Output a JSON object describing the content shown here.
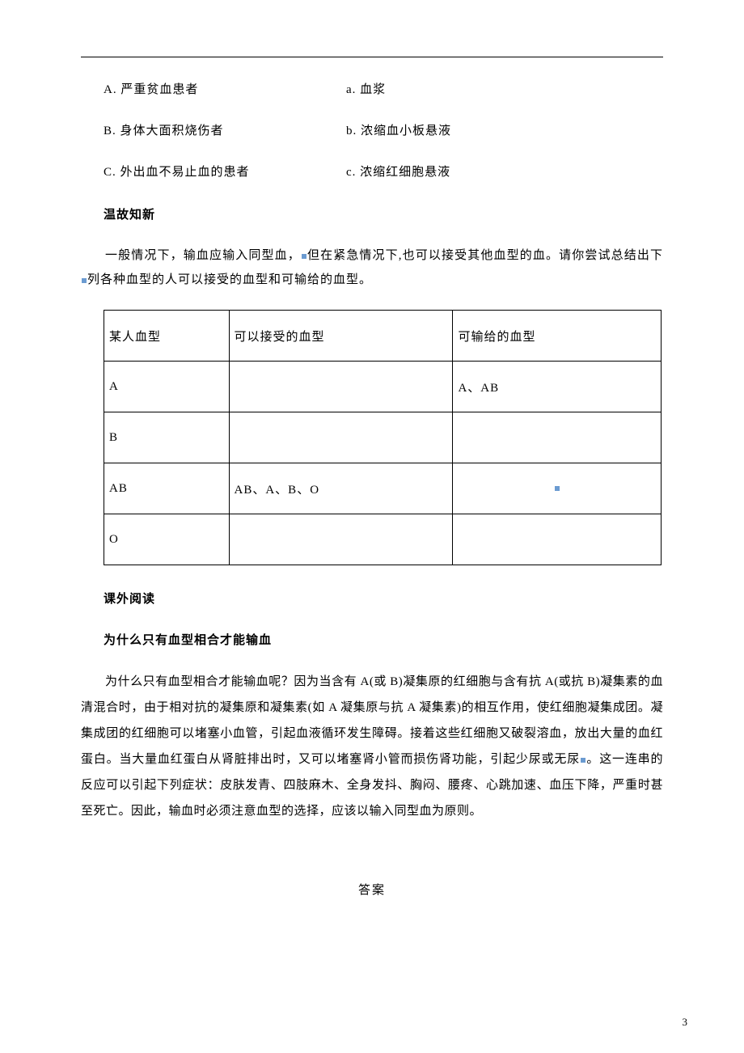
{
  "matches": [
    {
      "left": "A. 严重贫血患者",
      "right": "a. 血浆"
    },
    {
      "left": "B. 身体大面积烧伤者",
      "right": "b. 浓缩血小板悬液"
    },
    {
      "left": "C. 外出血不易止血的患者",
      "right": "c. 浓缩红细胞悬液"
    }
  ],
  "section1_title": "温故知新",
  "section1_para": "一般情况下，输血应输入同型血，但在紧急情况下,也可以接受其他血型的血。请你尝试总结出下列各种血型的人可以接受的血型和可输给的血型。",
  "table": {
    "headers": [
      "某人血型",
      "可以接受的血型",
      "可输给的血型"
    ],
    "rows": [
      {
        "c1": "A",
        "c2": "",
        "c3": "A、AB"
      },
      {
        "c1": "B",
        "c2": "",
        "c3": ""
      },
      {
        "c1": "AB",
        "c2": "AB、A、B、O",
        "c3": ""
      },
      {
        "c1": "O",
        "c2": "",
        "c3": ""
      }
    ]
  },
  "section2_title": "课外阅读",
  "section2_sub": "为什么只有血型相合才能输血",
  "section2_para": "为什么只有血型相合才能输血呢？因为当含有 A(或 B)凝集原的红细胞与含有抗 A(或抗 B)凝集素的血清混合时，由于相对抗的凝集原和凝集素(如 A 凝集原与抗 A 凝集素)的相互作用，使红细胞凝集成团。凝集成团的红细胞可以堵塞小血管，引起血液循环发生障碍。接着这些红细胞又破裂溶血，放出大量的血红蛋白。当大量血红蛋白从肾脏排出时，又可以堵塞肾小管而损伤肾功能，引起少尿或无尿。这一连串的反应可以引起下列症状：皮肤发青、四肢麻木、全身发抖、胸闷、腰疼、心跳加速、血压下降，严重时甚至死亡。因此，输血时必须注意血型的选择，应该以输入同型血为原则。",
  "answer_label": "答案",
  "page_number": "3",
  "colors": {
    "text": "#000000",
    "background": "#ffffff",
    "marker": "#6b9bd1",
    "border": "#000000"
  }
}
